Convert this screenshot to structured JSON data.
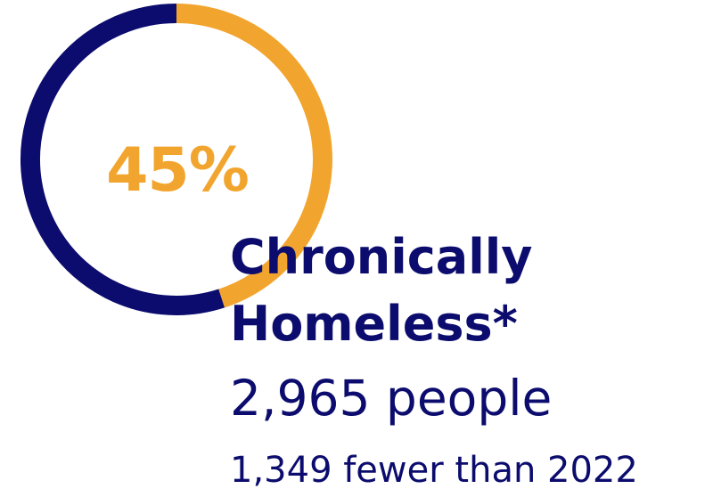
{
  "chart_data": {
    "type": "pie",
    "percent_label": "45%",
    "value": 45,
    "remainder": 55,
    "colors": {
      "value": "#F2A52E",
      "remainder": "#0C0C6E"
    }
  },
  "stat": {
    "label_line1": "Chronically",
    "label_line2": "Homeless*",
    "count": "2,965 people",
    "delta": "1,349 fewer than 2022"
  }
}
